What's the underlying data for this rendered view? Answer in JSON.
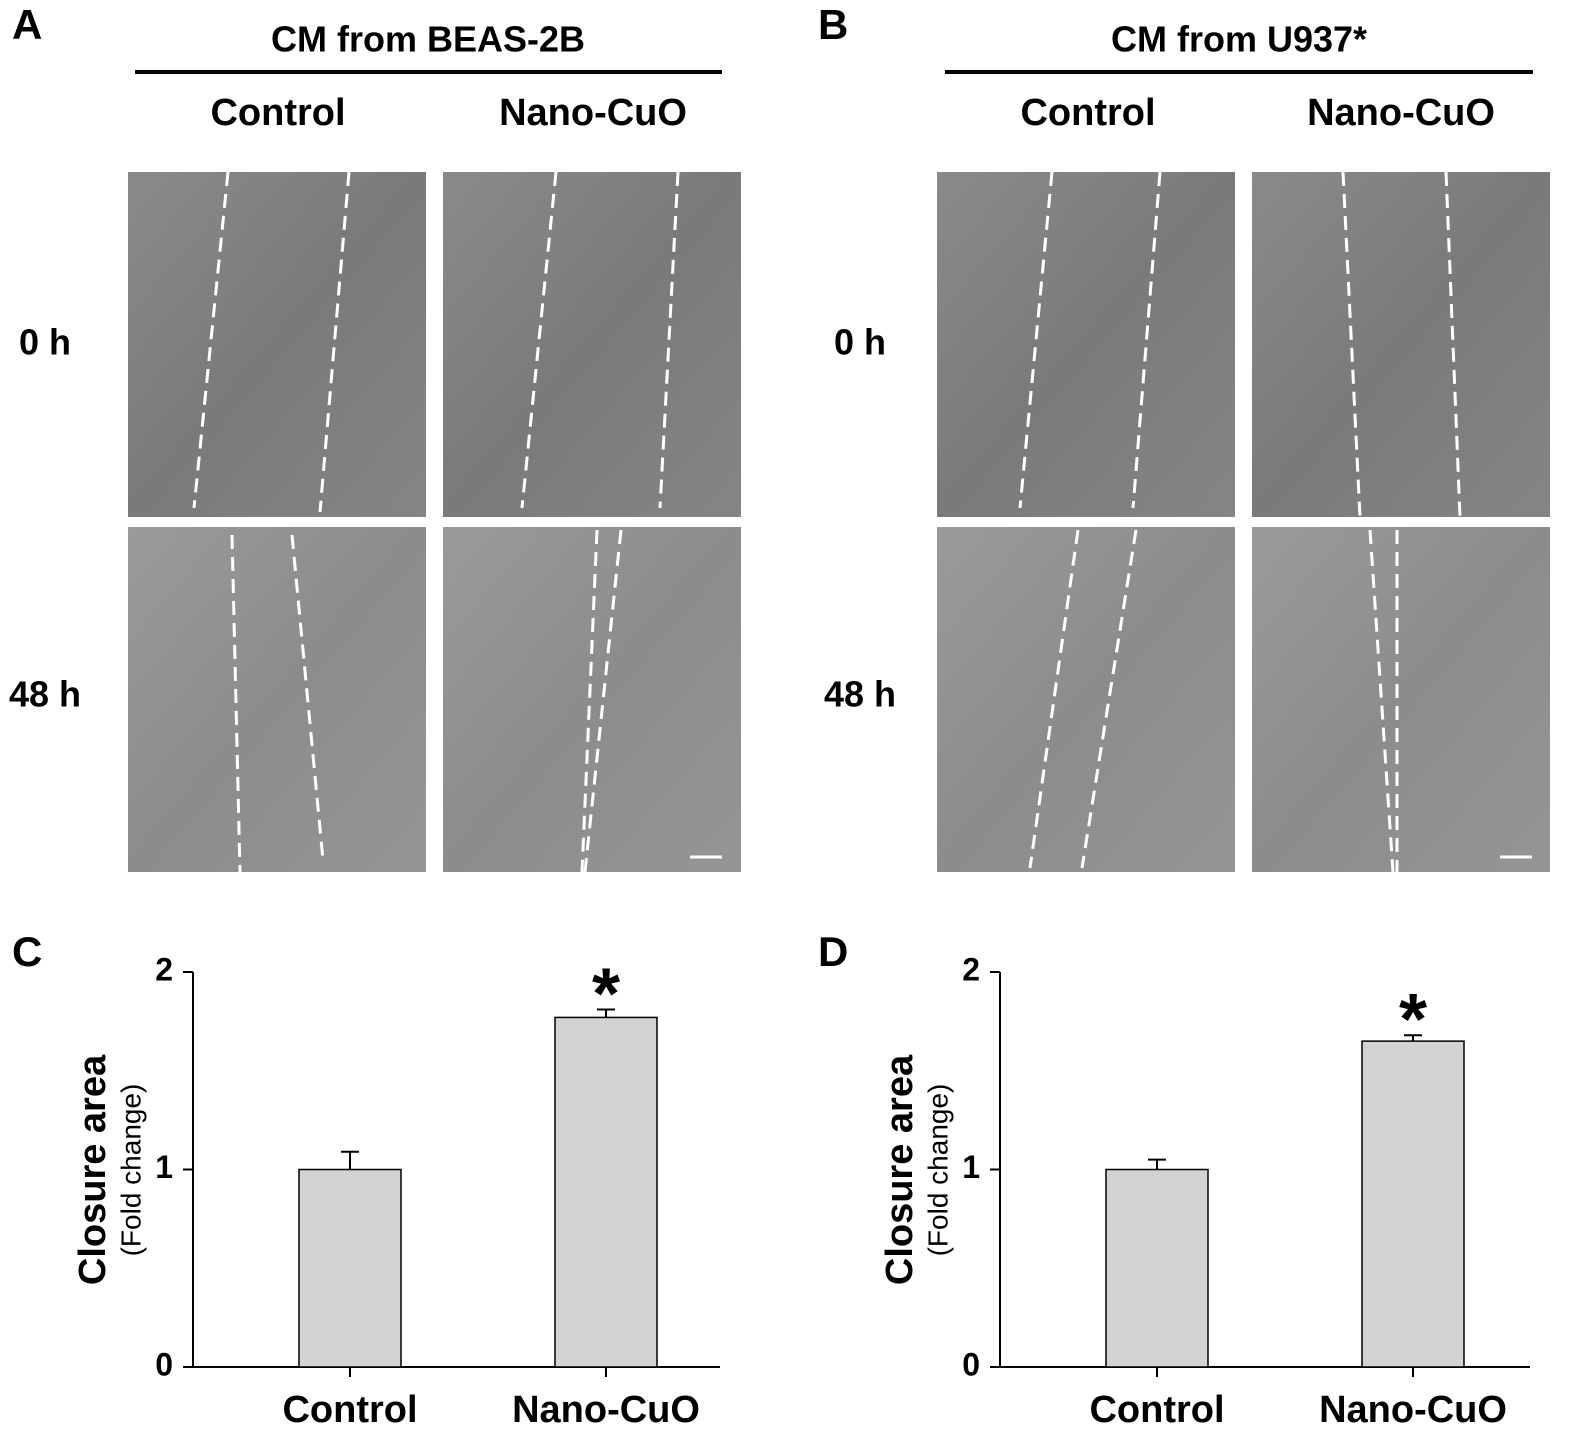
{
  "panel_a": {
    "label": "A",
    "title": "CM from BEAS-2B",
    "columns": [
      "Control",
      "Nano-CuO"
    ],
    "rows": [
      "0 h",
      "48 h"
    ]
  },
  "panel_b": {
    "label": "B",
    "title": "CM from U937*",
    "columns": [
      "Control",
      "Nano-CuO"
    ],
    "rows": [
      "0 h",
      "48 h"
    ]
  },
  "chart_data": [
    {
      "type": "bar",
      "panel_label": "C",
      "ylabel": "Closure area",
      "ylabel_sub": "(Fold change)",
      "categories": [
        "Control",
        "Nano-CuO"
      ],
      "values": [
        1.0,
        1.77
      ],
      "errors": [
        0.09,
        0.04
      ],
      "annotations": [
        null,
        "*"
      ],
      "color": "#d3d3d3",
      "ylim": [
        0,
        2
      ],
      "yticks": [
        0,
        1,
        2
      ]
    },
    {
      "type": "bar",
      "panel_label": "D",
      "ylabel": "Closure area",
      "ylabel_sub": "(Fold change)",
      "categories": [
        "Control",
        "Nano-CuO"
      ],
      "values": [
        1.0,
        1.65
      ],
      "errors": [
        0.05,
        0.03
      ],
      "annotations": [
        null,
        "*"
      ],
      "color": "#d3d3d3",
      "ylim": [
        0,
        2
      ],
      "yticks": [
        0,
        1,
        2
      ]
    }
  ]
}
